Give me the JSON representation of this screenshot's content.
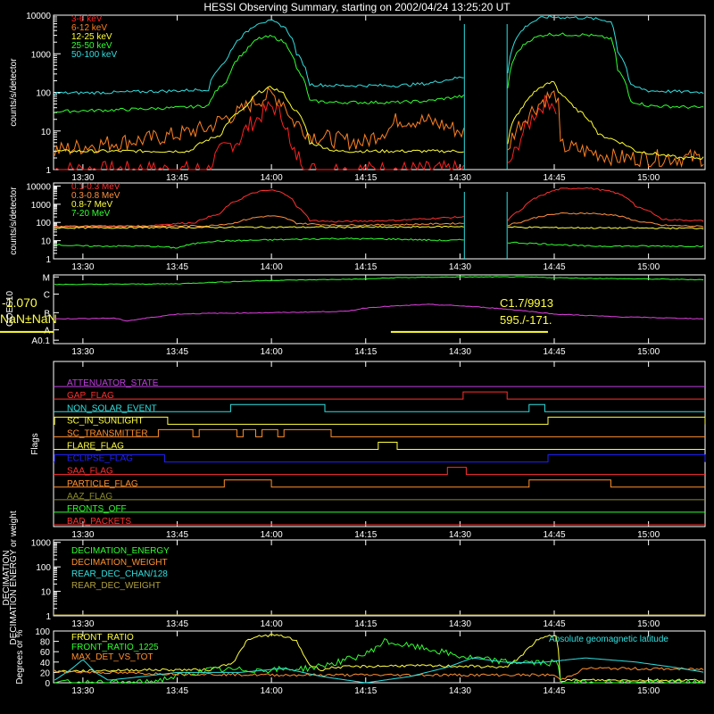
{
  "title": "HESSI Observing Summary, starting on 2002/04/24 13:25:20 UT",
  "time_axis": {
    "ticks": [
      "13:30",
      "13:45",
      "14:00",
      "14:15",
      "14:30",
      "14:45",
      "15:00"
    ],
    "tick_minutes": [
      30,
      45,
      60,
      75,
      90,
      105,
      120
    ],
    "range_minutes": [
      25.33,
      129
    ]
  },
  "colors": {
    "axis": "#ffffff",
    "flag_gap": "#888888"
  },
  "chart_data": [
    {
      "id": "panel-counts-low",
      "type": "line",
      "ylabel": "counts/s/detector",
      "yscale": "log",
      "ylim": [
        1,
        10000
      ],
      "yticks": [
        "1",
        "10",
        "100",
        "1000",
        "10000"
      ],
      "data_gap_minutes": [
        90.7,
        97.5
      ],
      "series": [
        {
          "name": "3-6 keV",
          "color": "#ff2020",
          "x": [
            25.5,
            50,
            55,
            58,
            60,
            62,
            63,
            66,
            70,
            80,
            89,
            97.5,
            99,
            101,
            103,
            104,
            105,
            105.5
          ],
          "y": [
            1,
            1,
            6,
            22,
            45,
            20,
            3,
            1,
            1,
            1,
            1,
            1,
            3,
            15,
            45,
            60,
            55,
            2
          ]
        },
        {
          "name": "6-12 keV",
          "color": "#ff8020",
          "x": [
            25.5,
            30,
            40,
            45,
            50,
            55,
            58,
            60,
            62,
            63,
            66,
            70,
            75,
            79,
            80,
            85,
            90.5,
            97.5,
            100,
            102,
            104,
            105.3,
            106,
            110,
            115,
            120,
            129
          ],
          "y": [
            3,
            4,
            6,
            8,
            12,
            30,
            65,
            85,
            55,
            20,
            8,
            6,
            5,
            12,
            20,
            18,
            9,
            2,
            18,
            40,
            75,
            85,
            4,
            3,
            2,
            2,
            2
          ]
        },
        {
          "name": "12-25 keV",
          "color": "#ffff30",
          "x": [
            25.5,
            30,
            40,
            47,
            52,
            56,
            58,
            60,
            62,
            63,
            66,
            70,
            80,
            90.5,
            97.5,
            100,
            103,
            105,
            105.5,
            108,
            112,
            118,
            125,
            129
          ],
          "y": [
            3,
            3,
            3,
            3,
            8,
            40,
            100,
            135,
            90,
            45,
            5,
            3,
            3,
            3,
            3,
            40,
            140,
            190,
            110,
            40,
            8,
            3,
            2,
            2
          ]
        },
        {
          "name": "25-50 keV",
          "color": "#30ff30",
          "x": [
            25.5,
            35,
            45,
            50,
            53,
            56,
            58,
            60,
            62,
            64,
            66,
            70,
            80,
            85,
            90.5,
            97.5,
            99,
            101,
            103,
            104,
            110,
            114,
            115,
            117,
            120,
            129
          ],
          "y": [
            32,
            35,
            40,
            45,
            200,
            1200,
            2500,
            2800,
            2000,
            400,
            60,
            55,
            55,
            60,
            80,
            60,
            1000,
            2200,
            3000,
            3200,
            3100,
            2500,
            400,
            60,
            45,
            40
          ]
        },
        {
          "name": "50-100 keV",
          "color": "#30e0e0",
          "x": [
            25.5,
            35,
            45,
            50,
            53,
            56,
            58,
            60,
            62,
            64,
            66,
            70,
            80,
            85,
            90.5,
            97.5,
            99,
            101,
            103,
            104,
            110,
            114,
            115,
            117,
            120,
            129
          ],
          "y": [
            95,
            100,
            110,
            120,
            700,
            3500,
            6500,
            7000,
            5000,
            1000,
            160,
            150,
            150,
            170,
            250,
            170,
            2500,
            6000,
            8500,
            9000,
            8500,
            7000,
            1200,
            150,
            110,
            100
          ]
        }
      ]
    },
    {
      "id": "panel-counts-high",
      "type": "line",
      "ylabel": "counts/s/detector",
      "yscale": "log",
      "ylim": [
        1,
        15000
      ],
      "yticks": [
        "1",
        "10",
        "100",
        "1000",
        "10000"
      ],
      "data_gap_minutes": [
        90.7,
        97.5
      ],
      "series": [
        {
          "name": "0.1-0.3 MeV",
          "color": "#ff3030",
          "x": [
            25.5,
            40,
            48,
            52,
            55,
            58,
            60,
            62,
            64,
            66,
            70,
            80,
            90.5,
            97.5,
            100,
            103,
            106,
            110,
            114,
            118,
            122,
            129
          ],
          "y": [
            60,
            65,
            100,
            300,
            1800,
            5000,
            6000,
            4000,
            700,
            130,
            110,
            130,
            200,
            120,
            500,
            3000,
            7000,
            8000,
            5000,
            700,
            150,
            120
          ]
        },
        {
          "name": "0.3-0.8 MeV",
          "color": "#ff9040",
          "x": [
            25.5,
            50,
            54,
            58,
            60,
            62,
            64,
            70,
            80,
            90.5,
            97.5,
            100,
            103,
            106,
            110,
            114,
            118,
            122,
            129
          ],
          "y": [
            60,
            65,
            90,
            200,
            230,
            180,
            90,
            70,
            75,
            90,
            70,
            110,
            220,
            310,
            320,
            270,
            120,
            70,
            60
          ]
        },
        {
          "name": "0.8-7 MeV",
          "color": "#ffff40",
          "x": [
            25.5,
            60,
            80,
            90.5,
            97.5,
            110,
            129
          ],
          "y": [
            50,
            55,
            55,
            60,
            55,
            50,
            48
          ]
        },
        {
          "name": "7-20 MeV",
          "color": "#30ff30",
          "x": [
            25.5,
            30,
            40,
            45,
            50,
            60,
            70,
            80,
            88,
            90.5,
            97.5,
            110,
            120,
            129
          ],
          "y": [
            6,
            5,
            5,
            4,
            9,
            11,
            13,
            12,
            10,
            11,
            8,
            5,
            5,
            5
          ]
        }
      ]
    },
    {
      "id": "panel-goes",
      "type": "line",
      "yscale": "log",
      "yticks": [
        "A0.1",
        "A",
        "B",
        "C",
        "M"
      ],
      "left_labels": [
        "-1.070",
        "NaN±NaN",
        "GOES10"
      ],
      "annotations": [
        "C1.7/9913",
        "595./-171."
      ],
      "series": [
        {
          "name": "",
          "color": "#30ff30",
          "x": [
            25.5,
            45,
            50,
            60,
            75,
            80,
            90,
            95,
            100,
            105,
            110,
            120,
            129
          ],
          "y": [
            0.86,
            0.87,
            0.89,
            0.92,
            0.94,
            0.96,
            0.97,
            0.97,
            0.97,
            0.96,
            0.95,
            0.94,
            0.93
          ]
        },
        {
          "name": "",
          "color": "#e040e0",
          "x": [
            25.5,
            35,
            37,
            40,
            45,
            50,
            60,
            72,
            75,
            78,
            85,
            90,
            95,
            100,
            105,
            110,
            115,
            120,
            129
          ],
          "y": [
            0.36,
            0.37,
            0.33,
            0.37,
            0.43,
            0.44,
            0.45,
            0.47,
            0.52,
            0.54,
            0.57,
            0.55,
            0.52,
            0.48,
            0.43,
            0.41,
            0.39,
            0.38,
            0.36
          ]
        }
      ],
      "marker_line": {
        "color": "#ffff30",
        "x": [
          79,
          104
        ],
        "y": 0.17
      }
    },
    {
      "id": "panel-flags",
      "type": "line",
      "ylabel": "Flags",
      "flags": [
        {
          "name": "ATTENUATOR_STATE",
          "color": "#c040e0",
          "highs": []
        },
        {
          "name": "GAP_FLAG",
          "color": "#ff3030",
          "highs": [
            [
              90.5,
              97.5
            ]
          ]
        },
        {
          "name": "NON_SOLAR_EVENT",
          "color": "#30e0e0",
          "highs": [
            [
              53.5,
              68.5
            ],
            [
              101,
              103.5
            ]
          ]
        },
        {
          "name": "SC_IN_SUNLIGHT",
          "color": "#ffff40",
          "highs": [
            [
              25.5,
              43.5
            ],
            [
              104,
              129
            ]
          ]
        },
        {
          "name": "SC_TRANSMITTER",
          "color": "#ff9030",
          "highs": [
            [
              42,
              47.5
            ],
            [
              48.5,
              54.5
            ],
            [
              55.5,
              57.5
            ],
            [
              58.5,
              61
            ],
            [
              62,
              69.5
            ]
          ]
        },
        {
          "name": "FLARE_FLAG",
          "color": "#ffff40",
          "highs": [
            [
              77,
              80
            ]
          ]
        },
        {
          "name": "ECLIPSE_FLAG",
          "color": "#2020ff",
          "highs": [
            [
              25.5,
              43
            ],
            [
              104,
              129
            ]
          ]
        },
        {
          "name": "SAA_FLAG",
          "color": "#ff3030",
          "highs": [
            [
              88,
              91
            ]
          ]
        },
        {
          "name": "PARTICLE_FLAG",
          "color": "#ff9030",
          "highs": [
            [
              52.5,
              60
            ],
            [
              101,
              114
            ]
          ]
        },
        {
          "name": "AAZ_FLAG",
          "color": "#888830",
          "highs": []
        },
        {
          "name": "FRONTS_OFF",
          "color": "#30ff30",
          "highs": []
        },
        {
          "name": "BAD_PACKETS",
          "color": "#ff3030",
          "highs": []
        }
      ]
    },
    {
      "id": "panel-decimation",
      "type": "line",
      "ylabel": "DECIMATION ENERGY or weight",
      "yscale": "log",
      "yticks": [
        "1",
        "10",
        "100",
        "1000"
      ],
      "series": [
        {
          "name": "DECIMATION_ENERGY",
          "color": "#30ff30",
          "x": [],
          "y": []
        },
        {
          "name": "DECIMATION_WEIGHT",
          "color": "#ff9030",
          "x": [],
          "y": []
        },
        {
          "name": "REAR_DEC_CHAN/128",
          "color": "#30e0e0",
          "x": [],
          "y": []
        },
        {
          "name": "REAR_DEC_WEIGHT",
          "color": "#b0a040",
          "x": [],
          "y": []
        }
      ]
    },
    {
      "id": "panel-ratios",
      "type": "line",
      "ylabel": "Degrees or %",
      "ylim": [
        0,
        100
      ],
      "yticks": [
        "0",
        "20",
        "40",
        "60",
        "80",
        "100"
      ],
      "corner_label": "Absolute geomagnetic latitude",
      "series": [
        {
          "name": "FRONT_RATIO",
          "color": "#ffff40",
          "x": [
            25.5,
            40,
            50,
            54,
            56,
            58,
            60,
            62,
            64,
            66,
            68,
            70,
            80,
            90.5,
            97.5,
            100,
            102,
            104,
            105.5,
            106,
            110,
            120,
            129
          ],
          "y": [
            22,
            25,
            25,
            40,
            80,
            90,
            92,
            90,
            80,
            35,
            25,
            30,
            33,
            32,
            30,
            55,
            80,
            90,
            92,
            5,
            5,
            5,
            5
          ]
        },
        {
          "name": "FRONT_RATIO_1225",
          "color": "#30ff30",
          "x": [
            25.5,
            40,
            50,
            60,
            66,
            70,
            75,
            78,
            80,
            85,
            90.5,
            97.5,
            100,
            104,
            105.5,
            106,
            129
          ],
          "y": [
            0,
            0,
            25,
            25,
            28,
            38,
            55,
            80,
            75,
            65,
            50,
            40,
            40,
            38,
            40,
            0,
            0
          ]
        },
        {
          "name": "MAX_DET_VS_TOT",
          "color": "#ff9030",
          "x": [
            25.5,
            40,
            60,
            80,
            90.5,
            97.5,
            105,
            106,
            110,
            120,
            129
          ],
          "y": [
            22,
            18,
            15,
            15,
            15,
            15,
            15,
            5,
            28,
            27,
            26
          ]
        },
        {
          "name": "",
          "color": "#30e0e0",
          "x": [
            25.5,
            28,
            30,
            32,
            34,
            38,
            45,
            55,
            62,
            68,
            75,
            82,
            88,
            92,
            97,
            102,
            110,
            118,
            124,
            129
          ],
          "y": [
            5,
            25,
            45,
            20,
            5,
            10,
            20,
            20,
            28,
            12,
            0,
            12,
            30,
            48,
            40,
            38,
            48,
            40,
            30,
            20
          ]
        }
      ]
    }
  ]
}
